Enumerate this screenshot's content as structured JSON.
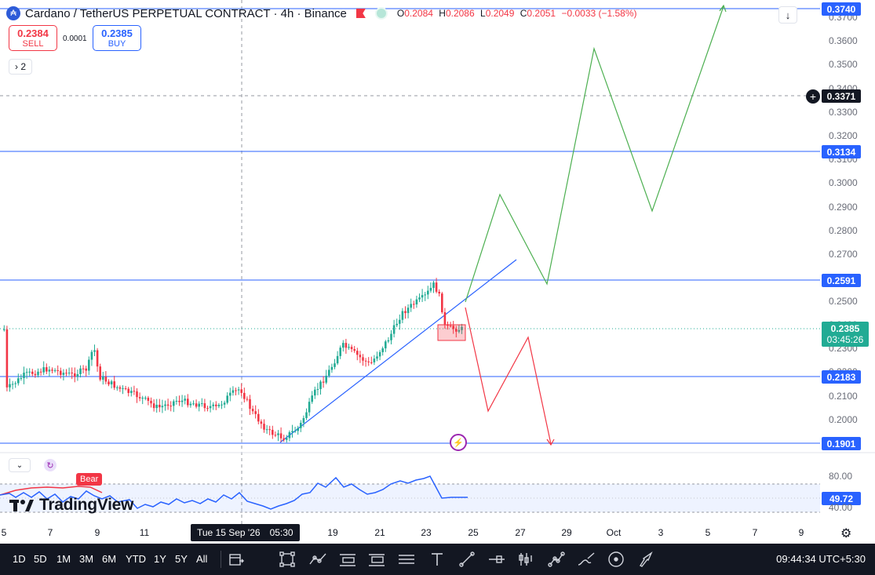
{
  "header": {
    "logo_text": "₳",
    "title": "Cardano / TetherUS PERPETUAL CONTRACT · 4h · Binance",
    "ohlc": [
      {
        "k": "O",
        "v": "0.2084"
      },
      {
        "k": "H",
        "v": "0.2086"
      },
      {
        "k": "L",
        "v": "0.2049"
      },
      {
        "k": "C",
        "v": "0.2051"
      },
      {
        "k": "",
        "v": "−0.0033 (−1.58%)"
      }
    ]
  },
  "trade": {
    "sell_price": "0.2384",
    "sell_label": "SELL",
    "spread": "0.0001",
    "buy_price": "0.2385",
    "buy_label": "BUY"
  },
  "indicators_count": "2",
  "price_axis": {
    "ticks": [
      "0.3700",
      "0.3600",
      "0.3500",
      "0.3400",
      "0.3300",
      "0.3200",
      "0.3100",
      "0.3000",
      "0.2900",
      "0.2800",
      "0.2700",
      "0.2600",
      "0.2500",
      "0.2400",
      "0.2300",
      "0.2200",
      "0.2100",
      "0.2000"
    ],
    "labels": {
      "top": "0.3740",
      "crosshair": "0.3371",
      "l1": "0.3134",
      "l2": "0.2591",
      "l3": "0.2183",
      "l4": "0.1901"
    },
    "current_price": "0.2385",
    "countdown": "03:45:26"
  },
  "oscillator": {
    "value": "49.72",
    "upper": "80.00",
    "lower": "40.00",
    "badge": "Bear"
  },
  "brand": "TradingView",
  "time_axis": {
    "ticks": [
      "5",
      "7",
      "9",
      "11",
      "15",
      "17",
      "19",
      "21",
      "23",
      "25",
      "27",
      "29",
      "Oct",
      "3",
      "5",
      "7",
      "9"
    ],
    "crosshair_date": "Tue 15 Sep '26",
    "crosshair_time": "05:30"
  },
  "bottom_bar": {
    "timeframes": [
      "1D",
      "5D",
      "1M",
      "3M",
      "6M",
      "YTD",
      "1Y",
      "5Y",
      "All"
    ],
    "clock": "09:44:34 UTC+5:30"
  },
  "colors": {
    "up": "#22ab94",
    "down": "#f23645",
    "level": "#2962ff",
    "bull_path": "#4caf50",
    "bear_path": "#f23645"
  }
}
